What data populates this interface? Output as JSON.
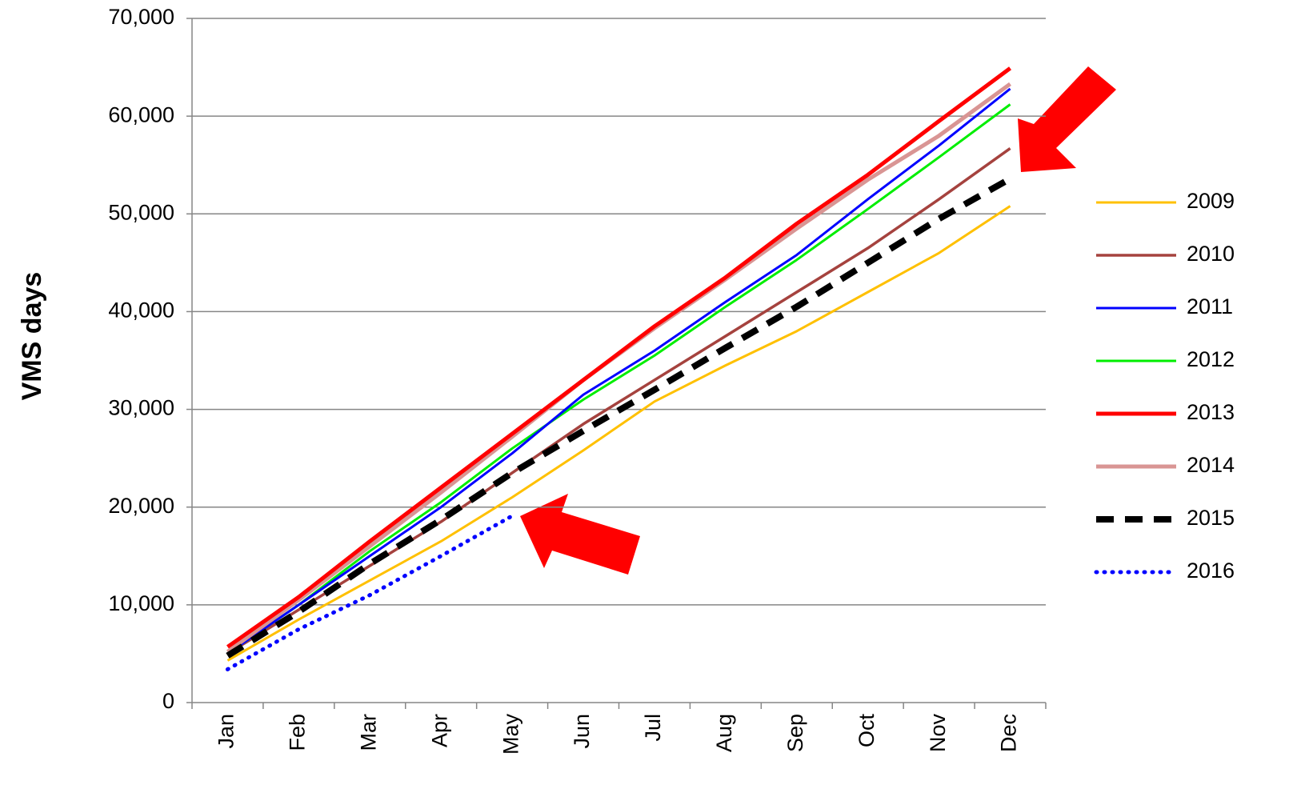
{
  "chart_data": {
    "type": "line",
    "y_label": "VMS days",
    "categories": [
      "Jan",
      "Feb",
      "Mar",
      "Apr",
      "May",
      "Jun",
      "Jul",
      "Aug",
      "Sep",
      "Oct",
      "Nov",
      "Dec"
    ],
    "ylim": [
      0,
      70000
    ],
    "yticks": [
      0,
      {
        "value": 10000,
        "label": "10,000"
      },
      {
        "value": 20000,
        "label": "20,000"
      },
      {
        "value": 30000,
        "label": "30,000"
      },
      {
        "value": 40000,
        "label": "40,000"
      },
      {
        "value": 50000,
        "label": "50,000"
      },
      {
        "value": 60000,
        "label": "60,000"
      },
      {
        "value": 70000,
        "label": "70,000"
      }
    ],
    "grid": true,
    "legend": "right",
    "series": [
      {
        "name": "2009",
        "color": "#ffc000",
        "values": [
          4300,
          8500,
          12500,
          16500,
          21000,
          25800,
          30800,
          34500,
          38000,
          42000,
          46000,
          50800
        ]
      },
      {
        "name": "2010",
        "color": "#a5423e",
        "values": [
          5000,
          9500,
          14000,
          18500,
          23500,
          28500,
          33000,
          37500,
          42000,
          46500,
          51500,
          56700
        ]
      },
      {
        "name": "2011",
        "color": "#0000ff",
        "values": [
          5000,
          10000,
          15000,
          20000,
          25500,
          31500,
          36000,
          41000,
          45800,
          51500,
          57000,
          62800
        ]
      },
      {
        "name": "2012",
        "color": "#00ee00",
        "values": [
          5000,
          10000,
          15500,
          20500,
          26000,
          31000,
          35500,
          40500,
          45300,
          50500,
          55800,
          61200
        ]
      },
      {
        "name": "2013",
        "color": "#ff0000",
        "values": [
          5700,
          10800,
          16500,
          22000,
          27500,
          33000,
          38500,
          43500,
          49000,
          54000,
          59500,
          64900
        ]
      },
      {
        "name": "2014",
        "color": "#d99594",
        "values": [
          5200,
          10500,
          16000,
          21500,
          27200,
          33000,
          38300,
          43300,
          48500,
          53500,
          58000,
          63300
        ]
      },
      {
        "name": "2015",
        "color": "#000000",
        "values": [
          4800,
          9300,
          14200,
          18700,
          23500,
          27800,
          32000,
          36300,
          40500,
          45000,
          49500,
          53600
        ]
      },
      {
        "name": "2016",
        "color": "#0000ff",
        "values": [
          3400,
          7500,
          11000,
          15000,
          19100,
          null,
          null,
          null,
          null,
          null,
          null,
          null
        ]
      }
    ]
  }
}
